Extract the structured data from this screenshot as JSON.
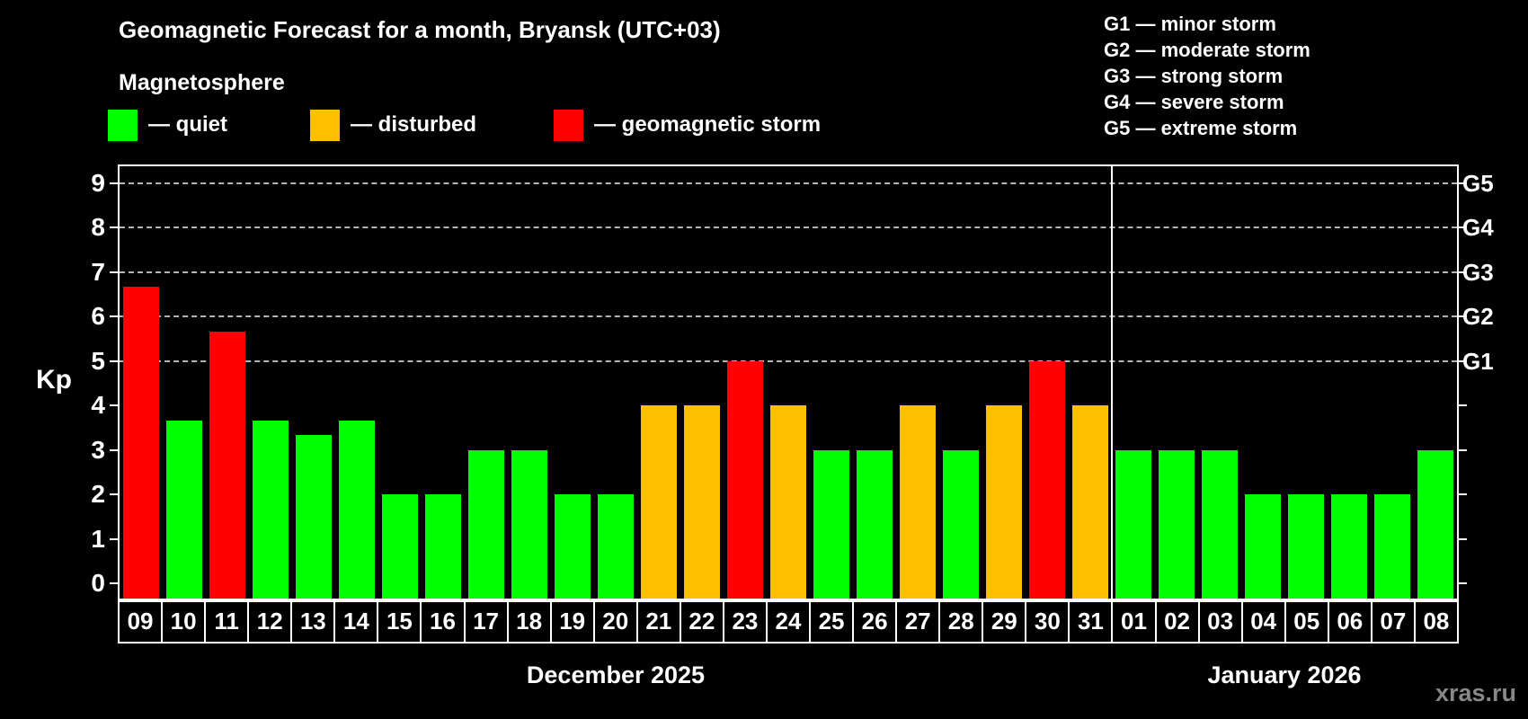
{
  "header": {
    "title": "Geomagnetic Forecast for a month, Bryansk (UTC+03)",
    "subtitle": "Magnetosphere",
    "status_legend": [
      {
        "key": "quiet",
        "label": "— quiet"
      },
      {
        "key": "disturbed",
        "label": "— disturbed"
      },
      {
        "key": "storm",
        "label": "— geomagnetic storm"
      }
    ],
    "g_scale_legend": [
      "G1 — minor storm",
      "G2 — moderate storm",
      "G3 — strong storm",
      "G4 — severe storm",
      "G5 — extreme storm"
    ]
  },
  "colors": {
    "quiet": "#00ff00",
    "disturbed": "#ffc000",
    "storm": "#ff0000",
    "grid": "#b5b5b5",
    "axis": "#ffffff",
    "background": "#000000",
    "watermark": "#888888"
  },
  "chart_data": {
    "type": "bar",
    "ylabel": "Kp",
    "ylim": [
      -0.34,
      9.38
    ],
    "y_ticks": [
      0,
      1,
      2,
      3,
      4,
      5,
      6,
      7,
      8,
      9
    ],
    "grid": "dashed horizontal lines at Kp 5-9 only",
    "legend_position": "top",
    "g_levels": [
      {
        "kp": 5,
        "label": "G1"
      },
      {
        "kp": 6,
        "label": "G2"
      },
      {
        "kp": 7,
        "label": "G3"
      },
      {
        "kp": 8,
        "label": "G4"
      },
      {
        "kp": 9,
        "label": "G5"
      }
    ],
    "months": [
      {
        "label": "December 2025",
        "days": [
          {
            "day": "09",
            "kp": 6.67,
            "status": "storm"
          },
          {
            "day": "10",
            "kp": 3.67,
            "status": "quiet"
          },
          {
            "day": "11",
            "kp": 5.67,
            "status": "storm"
          },
          {
            "day": "12",
            "kp": 3.67,
            "status": "quiet"
          },
          {
            "day": "13",
            "kp": 3.33,
            "status": "quiet"
          },
          {
            "day": "14",
            "kp": 3.67,
            "status": "quiet"
          },
          {
            "day": "15",
            "kp": 2,
            "status": "quiet"
          },
          {
            "day": "16",
            "kp": 2,
            "status": "quiet"
          },
          {
            "day": "17",
            "kp": 3,
            "status": "quiet"
          },
          {
            "day": "18",
            "kp": 3,
            "status": "quiet"
          },
          {
            "day": "19",
            "kp": 2,
            "status": "quiet"
          },
          {
            "day": "20",
            "kp": 2,
            "status": "quiet"
          },
          {
            "day": "21",
            "kp": 4,
            "status": "disturbed"
          },
          {
            "day": "22",
            "kp": 4,
            "status": "disturbed"
          },
          {
            "day": "23",
            "kp": 5,
            "status": "storm"
          },
          {
            "day": "24",
            "kp": 4,
            "status": "disturbed"
          },
          {
            "day": "25",
            "kp": 3,
            "status": "quiet"
          },
          {
            "day": "26",
            "kp": 3,
            "status": "quiet"
          },
          {
            "day": "27",
            "kp": 4,
            "status": "disturbed"
          },
          {
            "day": "28",
            "kp": 3,
            "status": "quiet"
          },
          {
            "day": "29",
            "kp": 4,
            "status": "disturbed"
          },
          {
            "day": "30",
            "kp": 5,
            "status": "storm"
          },
          {
            "day": "31",
            "kp": 4,
            "status": "disturbed"
          }
        ]
      },
      {
        "label": "January 2026",
        "days": [
          {
            "day": "01",
            "kp": 3,
            "status": "quiet"
          },
          {
            "day": "02",
            "kp": 3,
            "status": "quiet"
          },
          {
            "day": "03",
            "kp": 3,
            "status": "quiet"
          },
          {
            "day": "04",
            "kp": 2,
            "status": "quiet"
          },
          {
            "day": "05",
            "kp": 2,
            "status": "quiet"
          },
          {
            "day": "06",
            "kp": 2,
            "status": "quiet"
          },
          {
            "day": "07",
            "kp": 2,
            "status": "quiet"
          },
          {
            "day": "08",
            "kp": 3,
            "status": "quiet"
          }
        ]
      }
    ]
  },
  "watermark": "xras.ru"
}
